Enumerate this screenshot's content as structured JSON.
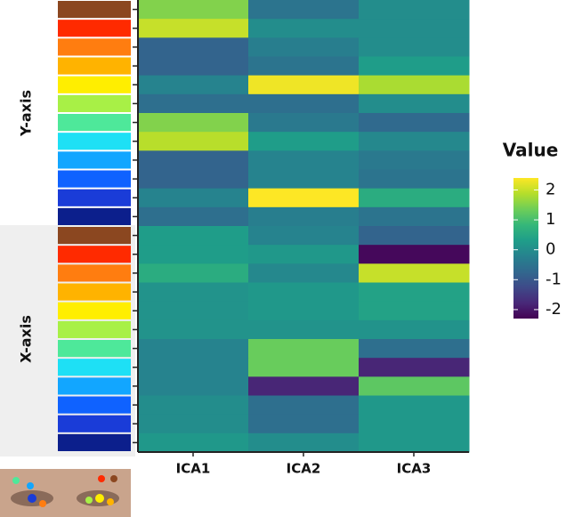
{
  "chart_data": {
    "type": "heatmap",
    "columns": [
      "ICA1",
      "ICA2",
      "ICA3"
    ],
    "row_groups": [
      {
        "label": "Y-axis",
        "count": 12
      },
      {
        "label": "X-axis",
        "count": 12
      }
    ],
    "row_colors": [
      "#8b4720",
      "#ff2a00",
      "#ff7d10",
      "#ffb300",
      "#ffee00",
      "#a8f046",
      "#4ee89a",
      "#1ee0f5",
      "#12a6ff",
      "#0f62ff",
      "#1a3cd8",
      "#0c1f8c",
      "#8b4720",
      "#ff2a00",
      "#ff7d10",
      "#ffb300",
      "#ffee00",
      "#a8f046",
      "#4ee89a",
      "#1ee0f5",
      "#12a6ff",
      "#0f62ff",
      "#1a3cd8",
      "#0c1f8c"
    ],
    "values": [
      [
        1.5,
        -0.5,
        0.0
      ],
      [
        2.0,
        0.0,
        0.0
      ],
      [
        -0.8,
        -0.3,
        0.0
      ],
      [
        -0.8,
        -0.5,
        0.3
      ],
      [
        -0.2,
        2.3,
        1.8
      ],
      [
        -0.6,
        -0.6,
        0.0
      ],
      [
        1.5,
        -0.4,
        -0.7
      ],
      [
        1.9,
        0.3,
        -0.1
      ],
      [
        -0.8,
        -0.2,
        -0.4
      ],
      [
        -0.8,
        -0.2,
        -0.5
      ],
      [
        -0.2,
        2.4,
        0.6
      ],
      [
        -0.6,
        -0.3,
        -0.5
      ],
      [
        0.3,
        -0.2,
        -0.8
      ],
      [
        0.3,
        0.2,
        -2.2
      ],
      [
        0.6,
        -0.1,
        2.0
      ],
      [
        0.1,
        0.2,
        0.4
      ],
      [
        0.1,
        0.2,
        0.4
      ],
      [
        0.1,
        0.1,
        0.1
      ],
      [
        -0.2,
        1.3,
        -0.6
      ],
      [
        -0.2,
        1.3,
        -1.8
      ],
      [
        -0.2,
        -1.8,
        1.2
      ],
      [
        0.0,
        -0.6,
        0.2
      ],
      [
        0.0,
        -0.6,
        0.2
      ],
      [
        0.2,
        0.0,
        0.2
      ]
    ],
    "colorbar": {
      "title": "Value",
      "lim": [
        -2.3,
        2.4
      ],
      "ticks": [
        2,
        1,
        0,
        -1,
        -2
      ],
      "colors": [
        "#440154",
        "#482878",
        "#3e4a89",
        "#31688e",
        "#26828e",
        "#1f9e89",
        "#35b779",
        "#6ece58",
        "#b5de2b",
        "#fde725"
      ]
    }
  }
}
